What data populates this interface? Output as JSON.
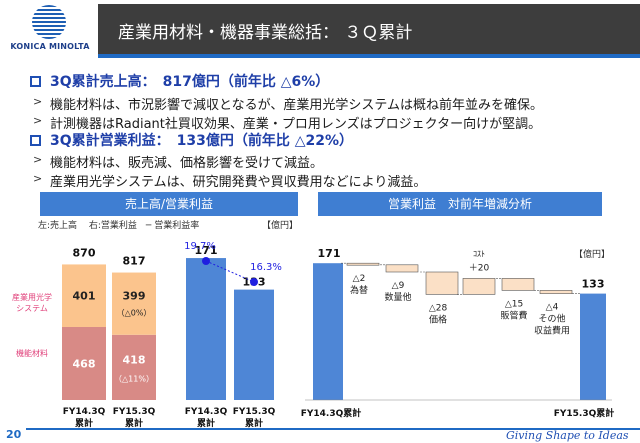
{
  "header": {
    "logo_text": "KONICA MINOLTA",
    "title": "産業用材料・機器事業総括： ３Ｑ累計"
  },
  "bullets": {
    "sales_heading": "3Q累計売上高：　817億円（前年比 △6%）",
    "sales_points": [
      "機能材料は、市況影響で減収となるが、産業用光学システムは概ね前年並みを確保。",
      "計測機器はRadiant社買収効果、産業・プロ用レンズはプロジェクター向けが堅調。"
    ],
    "profit_heading": "3Q累計営業利益：　133億円（前年比 △22%）",
    "profit_points": [
      "機能材料は、販売減、価格影響を受けて減益。",
      "産業用光学システムは、研究開発費や買収費用などにより減益。"
    ]
  },
  "left_panel": {
    "title": "売上高/営業利益",
    "legend": "左:売上高　 右:営業利益　─ 営業利益率",
    "unit": "【億円】",
    "seg_label_top": "産業用光学\nシステム",
    "seg_label_bottom": "機能材料",
    "sales_bars": [
      {
        "category": "FY14.3Q\n累計",
        "total": "870",
        "top_value": 401,
        "top_label": "401",
        "bottom_value": 468,
        "bottom_label": "468",
        "top_note": "",
        "bottom_note": ""
      },
      {
        "category": "FY15.3Q\n累計",
        "total": "817",
        "top_value": 399,
        "top_label": "399",
        "bottom_value": 418,
        "bottom_label": "418",
        "top_note": "（△0%）",
        "bottom_note": "（△11%）"
      }
    ],
    "profit_bars": [
      {
        "category": "FY14.3Q\n累計",
        "value": 171,
        "label": "171",
        "margin_label": "19.7%"
      },
      {
        "category": "FY15.3Q\n累計",
        "value": 133,
        "label": "133",
        "margin_label": "16.3%"
      }
    ]
  },
  "right_panel": {
    "title": "営業利益　対前年増減分析",
    "unit": "【億円】",
    "start": {
      "value": 171,
      "label": "171",
      "category": "FY14.3Q累計"
    },
    "end": {
      "value": 133,
      "label": "133",
      "category": "FY15.3Q累計"
    },
    "steps": [
      {
        "change": -2,
        "label": "△2",
        "name": "為替"
      },
      {
        "change": -9,
        "label": "△9",
        "name": "数量他"
      },
      {
        "change": -28,
        "label": "△28",
        "name": "価格"
      },
      {
        "change": 20,
        "label": "＋20",
        "name": "ｺｽﾄ"
      },
      {
        "change": -15,
        "label": "△15",
        "name": "販管費"
      },
      {
        "change": -4,
        "label": "△4",
        "name": "その他\n収益費用"
      }
    ]
  },
  "footer": {
    "page_number": "20",
    "tagline": "Giving Shape to Ideas"
  },
  "colors": {
    "orange": "#fbc48d",
    "red": "#d88a86",
    "blue": "#4e86d6",
    "header_blue": "#3f7ed2",
    "margin_dot": "#1f1fe0"
  }
}
